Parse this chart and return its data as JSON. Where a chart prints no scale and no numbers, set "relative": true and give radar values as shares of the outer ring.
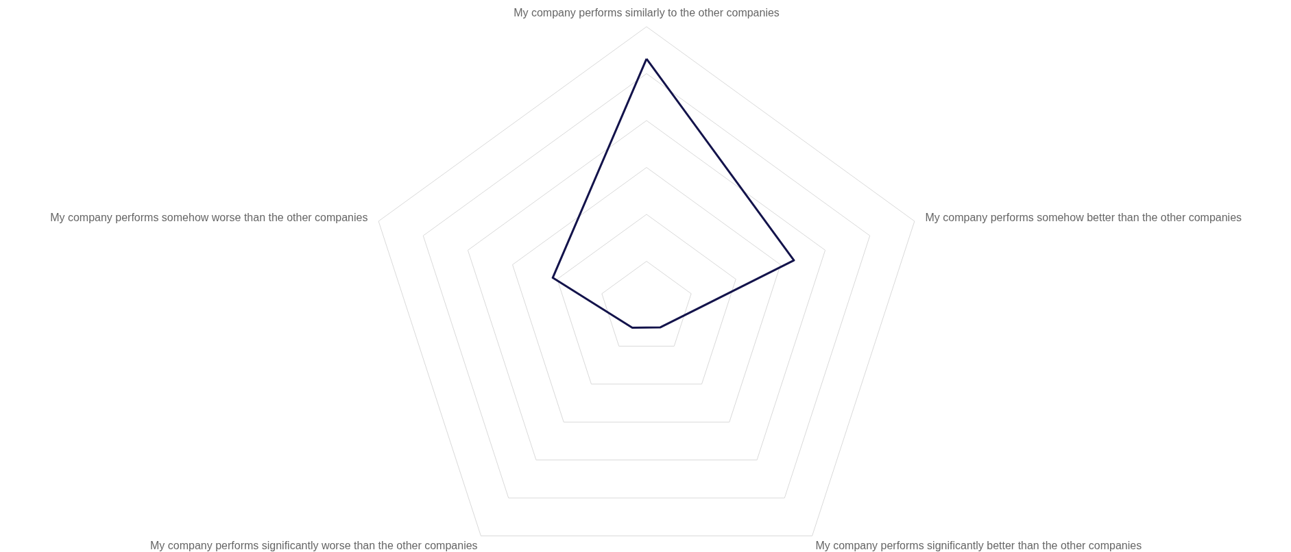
{
  "chart_data": {
    "type": "radar",
    "relative": true,
    "grid": true,
    "categories": [
      "My company performs similarly to the other companies",
      "My company performs somehow better than the other companies",
      "My company performs significantly better than the other companies",
      "My company performs significantly worse than the other companies",
      "My company performs somehow worse than the other companies"
    ],
    "series": [
      {
        "color": "#13134b",
        "values": [
          0.886,
          0.55,
          0.084,
          0.086,
          0.35
        ]
      }
    ]
  }
}
